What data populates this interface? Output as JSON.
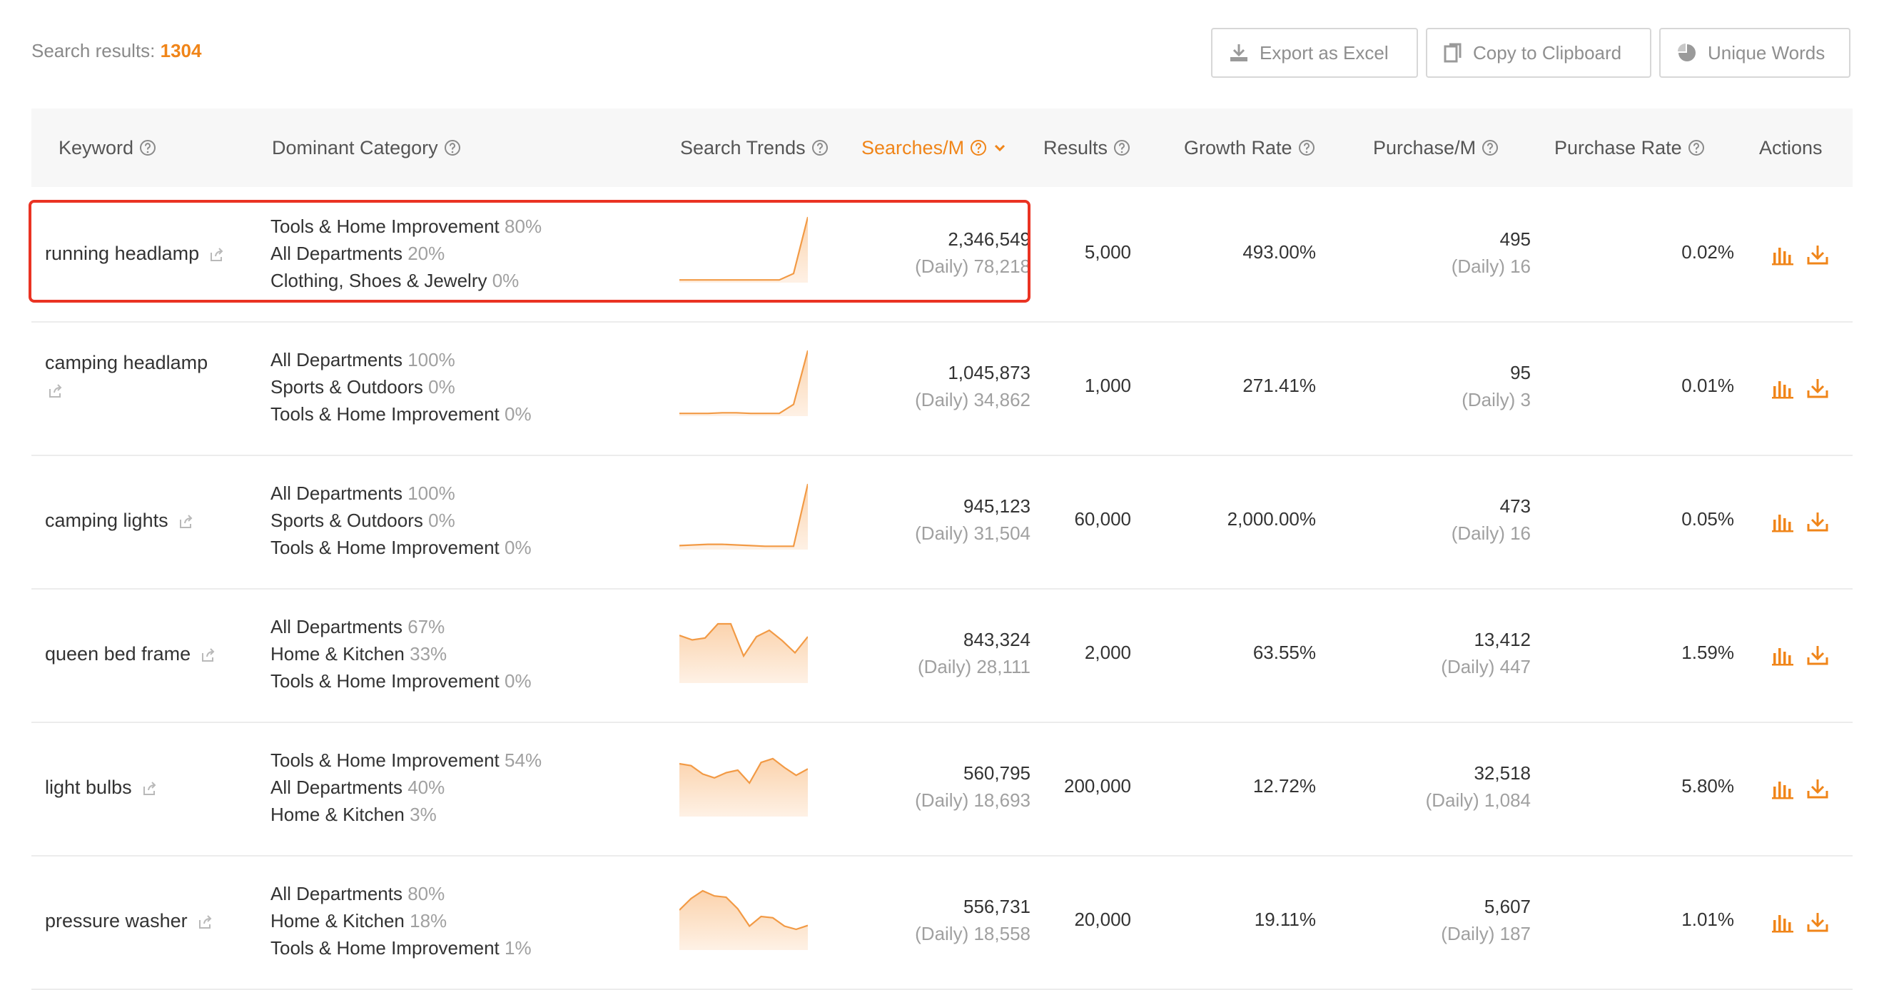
{
  "summary": {
    "label": "Search results:",
    "count": "1304"
  },
  "toolbar": {
    "export_label": "Export as Excel",
    "copy_label": "Copy to Clipboard",
    "unique_label": "Unique Words"
  },
  "columns": {
    "keyword": "Keyword",
    "category": "Dominant Category",
    "trends": "Search Trends",
    "searches": "Searches/M",
    "results": "Results",
    "growth": "Growth Rate",
    "purchase": "Purchase/M",
    "purchase_rate": "Purchase Rate",
    "actions": "Actions"
  },
  "colors": {
    "accent": "#f08519",
    "highlight": "#ea3323",
    "trend_fill": "#fde7d3"
  },
  "rows": [
    {
      "keyword": "running headlamp",
      "categories": [
        {
          "name": "Tools & Home Improvement",
          "pct": "80%"
        },
        {
          "name": "All Departments",
          "pct": "20%"
        },
        {
          "name": "Clothing, Shoes & Jewelry",
          "pct": "0%"
        }
      ],
      "trend": [
        2,
        2,
        2,
        2,
        2,
        2,
        2,
        2,
        12,
        100
      ],
      "searches": "2,346,549",
      "searches_daily": "(Daily) 78,218",
      "results": "5,000",
      "growth": "493.00%",
      "purchase": "495",
      "purchase_daily": "(Daily) 16",
      "purchase_rate": "0.02%"
    },
    {
      "keyword": "camping headlamp",
      "categories": [
        {
          "name": "All Departments",
          "pct": "100%"
        },
        {
          "name": "Sports & Outdoors",
          "pct": "0%"
        },
        {
          "name": "Tools & Home Improvement",
          "pct": "0%"
        }
      ],
      "trend": [
        2,
        2,
        2,
        3,
        3,
        2,
        2,
        2,
        16,
        100
      ],
      "searches": "1,045,873",
      "searches_daily": "(Daily) 34,862",
      "results": "1,000",
      "growth": "271.41%",
      "purchase": "95",
      "purchase_daily": "(Daily) 3",
      "purchase_rate": "0.01%"
    },
    {
      "keyword": "camping lights",
      "categories": [
        {
          "name": "All Departments",
          "pct": "100%"
        },
        {
          "name": "Sports & Outdoors",
          "pct": "0%"
        },
        {
          "name": "Tools & Home Improvement",
          "pct": "0%"
        }
      ],
      "trend": [
        4,
        5,
        6,
        6,
        5,
        4,
        3,
        3,
        3,
        100
      ],
      "searches": "945,123",
      "searches_daily": "(Daily) 31,504",
      "results": "60,000",
      "growth": "2,000.00%",
      "purchase": "473",
      "purchase_daily": "(Daily) 16",
      "purchase_rate": "0.05%"
    },
    {
      "keyword": "queen bed frame",
      "categories": [
        {
          "name": "All Departments",
          "pct": "67%"
        },
        {
          "name": "Home & Kitchen",
          "pct": "33%"
        },
        {
          "name": "Tools & Home Improvement",
          "pct": "0%"
        }
      ],
      "trend": [
        72,
        65,
        68,
        90,
        90,
        40,
        70,
        80,
        64,
        45,
        70
      ],
      "searches": "843,324",
      "searches_daily": "(Daily) 28,111",
      "results": "2,000",
      "growth": "63.55%",
      "purchase": "13,412",
      "purchase_daily": "(Daily) 447",
      "purchase_rate": "1.59%"
    },
    {
      "keyword": "light bulbs",
      "categories": [
        {
          "name": "Tools & Home Improvement",
          "pct": "54%"
        },
        {
          "name": "All Departments",
          "pct": "40%"
        },
        {
          "name": "Home & Kitchen",
          "pct": "3%"
        }
      ],
      "trend": [
        80,
        77,
        64,
        58,
        66,
        70,
        50,
        82,
        88,
        74,
        62,
        72
      ],
      "searches": "560,795",
      "searches_daily": "(Daily) 18,693",
      "results": "200,000",
      "growth": "12.72%",
      "purchase": "32,518",
      "purchase_daily": "(Daily) 1,084",
      "purchase_rate": "5.80%"
    },
    {
      "keyword": "pressure washer",
      "categories": [
        {
          "name": "All Departments",
          "pct": "80%"
        },
        {
          "name": "Home & Kitchen",
          "pct": "18%"
        },
        {
          "name": "Tools & Home Improvement",
          "pct": "1%"
        }
      ],
      "trend": [
        60,
        78,
        90,
        82,
        80,
        62,
        35,
        50,
        48,
        35,
        30,
        36
      ],
      "searches": "556,731",
      "searches_daily": "(Daily) 18,558",
      "results": "20,000",
      "growth": "19.11%",
      "purchase": "5,607",
      "purchase_daily": "(Daily) 187",
      "purchase_rate": "1.01%"
    }
  ]
}
